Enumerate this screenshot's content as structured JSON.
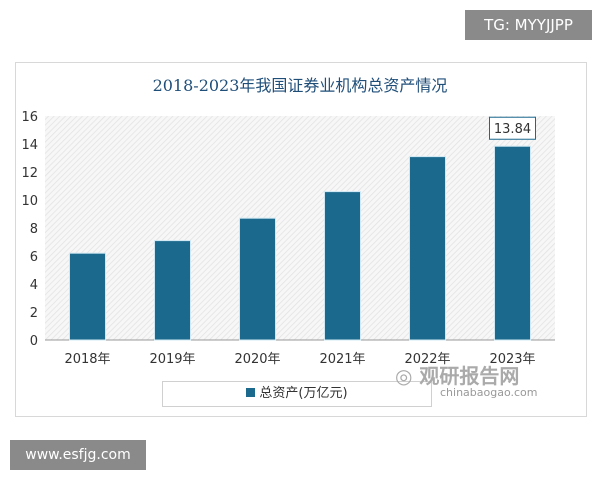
{
  "watermarks": {
    "tg": "TG: MYYJJPP",
    "site": "www.esfjg.com",
    "logo_cn": "观研报告网",
    "logo_en": "chinabaogao.com"
  },
  "chart_data": {
    "type": "bar",
    "title": "2018-2023年我国证券业机构总资产情况",
    "categories": [
      "2018年",
      "2019年",
      "2020年",
      "2021年",
      "2022年",
      "2023年"
    ],
    "series": [
      {
        "name": "总资产(万亿元)",
        "values": [
          6.2,
          7.1,
          8.7,
          10.6,
          13.1,
          13.84
        ]
      }
    ],
    "data_labels": [
      {
        "category": "2023年",
        "text": "13.84"
      }
    ],
    "yticks": [
      0,
      2,
      4,
      6,
      8,
      10,
      12,
      14,
      16
    ],
    "ylim": [
      0,
      16
    ],
    "grid": false,
    "legend": "bottom",
    "colors": {
      "bar": "#1b6a8e"
    }
  }
}
